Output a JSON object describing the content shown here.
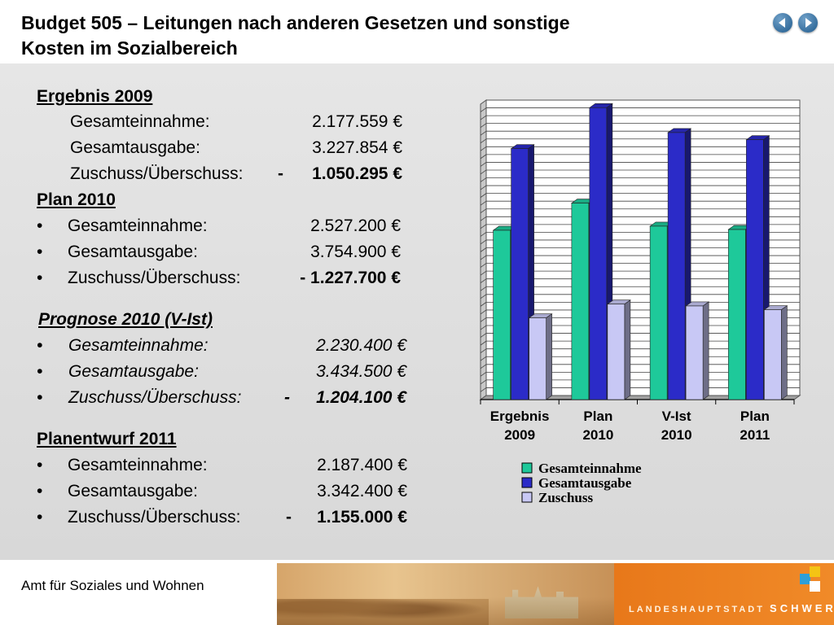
{
  "header": {
    "title_line1": "Budget 505 – Leitungen nach anderen Gesetzen und sonstige",
    "title_line2": "Kosten im Sozialbereich",
    "nav_prev_icon": "arrow-left-icon",
    "nav_next_icon": "arrow-right-icon"
  },
  "sections": {
    "ergebnis": {
      "heading": "Ergebnis 2009",
      "rows": [
        {
          "label": "Gesamteinnahme:",
          "value": "2.177.559 €"
        },
        {
          "label": "Gesamtausgabe:",
          "value": "3.227.854 €"
        },
        {
          "label": "Zuschuss/Überschuss:",
          "sign": "-",
          "value": "1.050.295 €"
        }
      ]
    },
    "plan2010": {
      "heading": "Plan 2010",
      "rows": [
        {
          "label": "Gesamteinnahme:",
          "value": "2.527.200 €"
        },
        {
          "label": "Gesamtausgabe:",
          "value": "3.754.900 €"
        },
        {
          "label": "Zuschuss/Überschuss:",
          "value": "- 1.227.700 €"
        }
      ]
    },
    "prognose": {
      "heading": "Prognose 2010 (V-Ist)",
      "rows": [
        {
          "label": "Gesamteinnahme:",
          "value": "2.230.400 €"
        },
        {
          "label": "Gesamtausgabe:",
          "value": "3.434.500 €"
        },
        {
          "label": "Zuschuss/Überschuss:",
          "sign": "-",
          "value": "1.204.100 €"
        }
      ]
    },
    "planentwurf": {
      "heading": "Planentwurf 2011",
      "rows": [
        {
          "label": "Gesamteinnahme:",
          "value": "2.187.400 €"
        },
        {
          "label": "Gesamtausgabe:",
          "value": "3.342.400 €"
        },
        {
          "label": "Zuschuss/Überschuss:",
          "sign": "-",
          "value": "1.155.000 €"
        }
      ]
    },
    "bullet": "•"
  },
  "chart_data": {
    "type": "bar",
    "categories": [
      [
        "Ergebnis",
        "2009"
      ],
      [
        "Plan",
        "2010"
      ],
      [
        "V-Ist",
        "2010"
      ],
      [
        "Plan",
        "2011"
      ]
    ],
    "series": [
      {
        "name": "Gesamteinnahme",
        "color": "#1ec99a",
        "values": [
          2177559,
          2527200,
          2230400,
          2187400
        ]
      },
      {
        "name": "Gesamtausgabe",
        "color": "#2b2bc8",
        "values": [
          3227854,
          3754900,
          3434500,
          3342400
        ]
      },
      {
        "name": "Zuschuss",
        "color": "#c8c8f5",
        "values": [
          1050295,
          1227700,
          1204100,
          1155000
        ]
      }
    ],
    "ylim": [
      0,
      3800000
    ],
    "grid": true,
    "legend": "bottom"
  },
  "footer": {
    "department": "Amt für Soziales und Wohnen",
    "brand_prefix": "LANDESHAUPTSTADT",
    "brand_name": "SCHWERIN",
    "logo_colors": [
      "#2f9fd8",
      "#f4c414",
      "#ffffff",
      "#f08a28"
    ]
  }
}
